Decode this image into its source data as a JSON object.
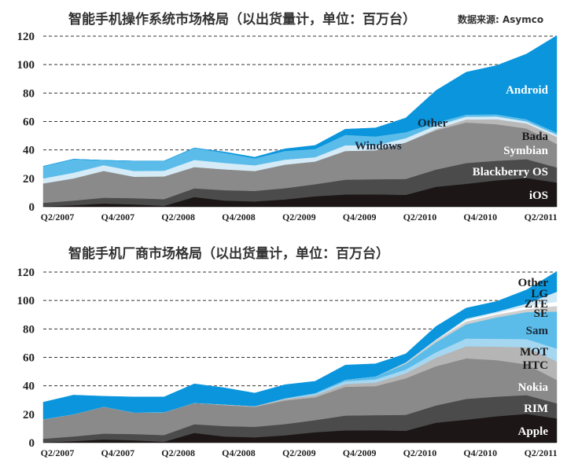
{
  "chart_data": [
    {
      "type": "area",
      "stacked": true,
      "title": "智能手机操作系统市场格局（以出货量计，单位：百万台）",
      "source": "数据来源: Asymco",
      "xlabel": "",
      "ylabel": "",
      "ylim": [
        0,
        120
      ],
      "yticks": [
        0,
        20,
        40,
        60,
        80,
        100,
        120
      ],
      "grid": "dashed horizontal",
      "x": [
        "Q2/2007",
        "Q3/2007",
        "Q4/2007",
        "Q1/2008",
        "Q2/2008",
        "Q3/2008",
        "Q4/2008",
        "Q1/2009",
        "Q2/2009",
        "Q3/2009",
        "Q4/2009",
        "Q1/2010",
        "Q2/2010",
        "Q3/2010",
        "Q4/2010",
        "Q1/2011",
        "Q2/2011",
        "Q3/2011"
      ],
      "xticklabels": [
        "Q2/2007",
        "Q4/2007",
        "Q2/2008",
        "Q4/2008",
        "Q2/2009",
        "Q4/2009",
        "Q2/2010",
        "Q4/2010",
        "Q2/2011"
      ],
      "series": [
        {
          "name": "iOS",
          "color": "#1c1616",
          "values": [
            0.3,
            1.1,
            2.3,
            1.7,
            0.7,
            6.9,
            4.4,
            3.8,
            5.2,
            7.4,
            8.7,
            8.8,
            8.4,
            14.1,
            16.2,
            18.6,
            20.3,
            17.1
          ]
        },
        {
          "name": "Blackberry OS",
          "color": "#4b4b4b",
          "values": [
            2.5,
            3.3,
            4.1,
            4.4,
            4.7,
            6.1,
            7.3,
            7.4,
            7.9,
            8.5,
            10.4,
            10.6,
            11.2,
            12.1,
            14.6,
            13.8,
            13.2,
            10.6
          ]
        },
        {
          "name": "Symbian",
          "color": "#8a8a8a",
          "values": [
            13.7,
            15.6,
            18.9,
            15.1,
            16,
            15,
            14.7,
            14,
            16.6,
            16,
            20.2,
            20.4,
            25.7,
            27.6,
            28.5,
            25.7,
            21.6,
            16.5
          ]
        },
        {
          "name": "Bada",
          "color": "#b8b8b8",
          "values": [
            0,
            0,
            0,
            0,
            0,
            0,
            0,
            0,
            0,
            0,
            0,
            0,
            0,
            0.9,
            2.1,
            3.5,
            3.5,
            5
          ]
        },
        {
          "name": "Windows",
          "color": "#d5ebf7",
          "values": [
            3.5,
            4,
            4,
            4,
            4,
            5,
            4.5,
            4,
            3.5,
            3,
            4,
            3.5,
            3,
            2.5,
            2,
            2,
            1.5,
            1.5
          ]
        },
        {
          "name": "Other",
          "color": "#5bbce9",
          "values": [
            8.5,
            9.5,
            3.4,
            7,
            6.8,
            8.4,
            7.1,
            4.9,
            6.1,
            5.8,
            7.3,
            6.2,
            4.2,
            2,
            1.5,
            1.5,
            1.5,
            1.5
          ]
        },
        {
          "name": "Android",
          "color": "#0a95dc",
          "values": [
            0,
            0,
            0,
            0,
            0,
            0,
            0.6,
            0.8,
            1.5,
            2.5,
            4,
            6,
            10,
            22.6,
            29.8,
            34.2,
            45.9,
            68.2
          ]
        }
      ]
    },
    {
      "type": "area",
      "stacked": true,
      "title": "智能手机厂商市场格局（以出货量计，单位：百万台）",
      "xlabel": "",
      "ylabel": "",
      "ylim": [
        0,
        120
      ],
      "yticks": [
        0,
        20,
        40,
        60,
        80,
        100,
        120
      ],
      "grid": "dashed horizontal",
      "x": [
        "Q2/2007",
        "Q3/2007",
        "Q4/2007",
        "Q1/2008",
        "Q2/2008",
        "Q3/2008",
        "Q4/2008",
        "Q1/2009",
        "Q2/2009",
        "Q3/2009",
        "Q4/2009",
        "Q1/2010",
        "Q2/2010",
        "Q3/2010",
        "Q4/2010",
        "Q1/2011",
        "Q2/2011",
        "Q3/2011"
      ],
      "xticklabels": [
        "Q2/2007",
        "Q4/2007",
        "Q2/2008",
        "Q4/2008",
        "Q2/2009",
        "Q4/2009",
        "Q2/2010",
        "Q4/2010",
        "Q2/2011"
      ],
      "series": [
        {
          "name": "Apple",
          "color": "#1c1616",
          "values": [
            0.3,
            1.1,
            2.3,
            1.7,
            0.7,
            6.9,
            4.4,
            3.8,
            5.2,
            7.4,
            8.7,
            8.8,
            8.4,
            14.1,
            16.2,
            18.6,
            20.3,
            17.1
          ]
        },
        {
          "name": "RIM",
          "color": "#4b4b4b",
          "values": [
            2.5,
            3.3,
            4.1,
            4.4,
            4.7,
            6.1,
            7.3,
            7.4,
            7.9,
            8.5,
            10.4,
            10.6,
            11.2,
            12.1,
            14.6,
            13.8,
            13.2,
            10.6
          ]
        },
        {
          "name": "Nokia",
          "color": "#8a8a8a",
          "values": [
            13.7,
            15.6,
            18.9,
            15.1,
            16,
            15,
            14.7,
            14,
            16.6,
            16,
            20.2,
            20.4,
            25.7,
            27.6,
            28.5,
            25.7,
            21.6,
            16.5
          ]
        },
        {
          "name": "HTC",
          "color": "#b5b5b5",
          "values": [
            0,
            0,
            0,
            0,
            0,
            0,
            0.5,
            0.5,
            1,
            1.5,
            2,
            2.5,
            3.5,
            6,
            8.5,
            9.5,
            12,
            13
          ]
        },
        {
          "name": "MOT",
          "color": "#a5d7f1",
          "values": [
            0,
            0,
            0,
            0,
            0,
            0,
            0,
            0,
            0.5,
            1,
            2,
            2.3,
            2.7,
            3.8,
            5.5,
            5.5,
            5.8,
            9
          ]
        },
        {
          "name": "Sam",
          "color": "#5bbce9",
          "values": [
            0,
            0,
            0,
            0,
            0,
            0,
            0,
            0,
            0,
            0.5,
            1,
            2,
            4,
            7,
            10,
            15,
            19,
            26
          ]
        },
        {
          "name": "SE",
          "color": "#cfcfcf",
          "values": [
            0,
            0,
            0,
            0,
            0,
            0,
            0,
            0,
            0,
            0,
            0,
            0,
            1,
            1.5,
            2,
            2,
            2,
            4
          ]
        },
        {
          "name": "ZTE",
          "color": "#ffffff",
          "values": [
            0,
            0,
            0,
            0,
            0,
            0,
            0,
            0,
            0,
            0,
            0,
            0,
            0,
            0,
            1,
            1,
            2,
            3
          ]
        },
        {
          "name": "LG",
          "color": "#cfe8f6",
          "values": [
            0,
            0,
            0,
            0,
            0,
            0,
            0,
            0,
            0,
            0,
            0,
            0,
            0,
            0.5,
            1,
            1,
            2,
            7
          ]
        },
        {
          "name": "Other",
          "color": "#0a95dc",
          "values": [
            12,
            13.5,
            7.4,
            11,
            10.8,
            13.4,
            11.7,
            9.2,
            9.6,
            8.3,
            10.3,
            8.9,
            6,
            9.2,
            7.4,
            7.2,
            9.6,
            14.2
          ]
        }
      ]
    }
  ],
  "labels": {
    "os": {
      "android": "Android",
      "other": "Other",
      "windows": "Windows",
      "bada": "Bada",
      "symbian": "Symbian",
      "blackberry": "Blackberry OS",
      "ios": "iOS"
    },
    "vendor": {
      "other": "Other",
      "lg": "LG",
      "zte": "ZTE",
      "se": "SE",
      "sam": "Sam",
      "mot": "MOT",
      "htc": "HTC",
      "nokia": "Nokia",
      "rim": "RIM",
      "apple": "Apple"
    }
  }
}
